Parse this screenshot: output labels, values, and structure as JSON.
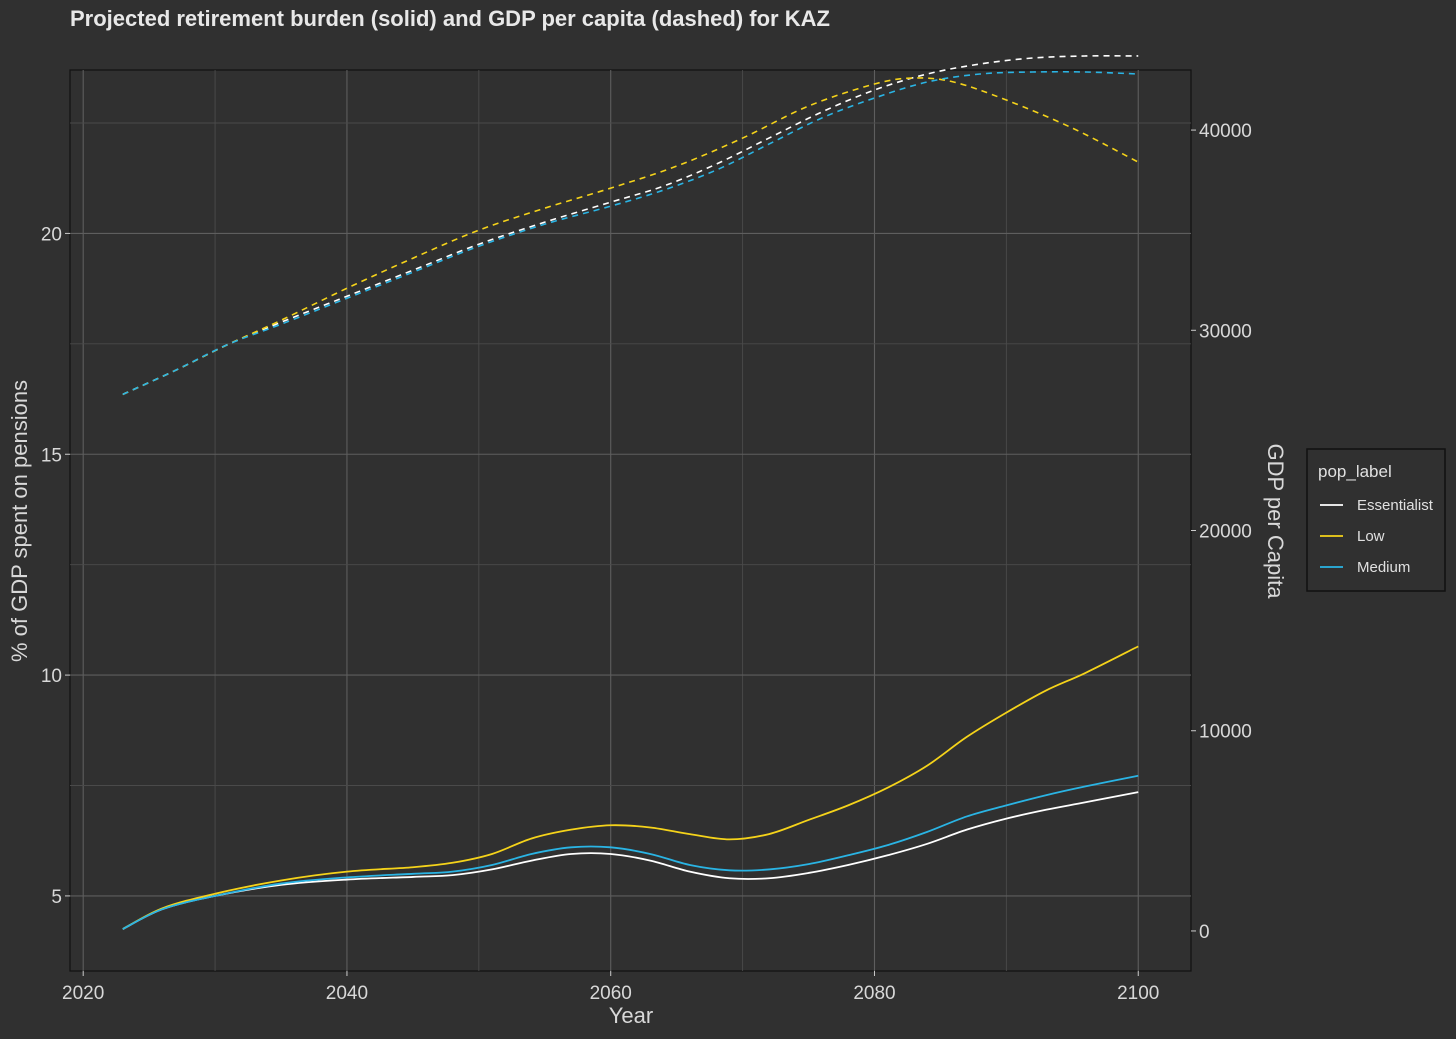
{
  "chart_data": {
    "type": "line",
    "title": "Projected retirement burden (solid) and GDP per capita (dashed) for KAZ",
    "xlabel": "Year",
    "ylabel": "% of GDP spent on pensions",
    "ylabel_right": "GDP per Capita",
    "xlim": [
      2019,
      2104
    ],
    "ylim": [
      3.3,
      23.7
    ],
    "ylim_right": [
      -2000,
      43000
    ],
    "x_ticks": [
      2020,
      2040,
      2060,
      2080,
      2100
    ],
    "y_ticks": [
      5,
      10,
      15,
      20
    ],
    "y_ticks_right": [
      0,
      10000,
      20000,
      30000,
      40000
    ],
    "grid": true,
    "legend": {
      "title": "pop_label",
      "position": "right"
    },
    "series": [
      {
        "name": "Essentialist",
        "color": "#ffffff",
        "pension": {
          "x": [
            2023,
            2026,
            2030,
            2035,
            2040,
            2045,
            2048,
            2051,
            2054,
            2057,
            2060,
            2063,
            2066,
            2069,
            2072,
            2075,
            2078,
            2081,
            2084,
            2087,
            2090,
            2093,
            2096,
            2100
          ],
          "y": [
            4.25,
            4.7,
            5.0,
            5.25,
            5.37,
            5.43,
            5.47,
            5.6,
            5.8,
            5.95,
            5.95,
            5.8,
            5.55,
            5.4,
            5.4,
            5.52,
            5.7,
            5.92,
            6.18,
            6.5,
            6.75,
            6.95,
            7.12,
            7.35
          ]
        },
        "gdp": {
          "x": [
            2023,
            2027,
            2031,
            2035,
            2040,
            2045,
            2050,
            2055,
            2060,
            2064,
            2068,
            2072,
            2076,
            2080,
            2084,
            2088,
            2092,
            2096,
            2100
          ],
          "y": [
            26800,
            28000,
            29300,
            30400,
            31700,
            33000,
            34300,
            35400,
            36400,
            37200,
            38300,
            39600,
            40900,
            42000,
            42800,
            43300,
            43600,
            43700,
            43700
          ]
        }
      },
      {
        "name": "Low",
        "color": "#f5d31a",
        "pension": {
          "x": [
            2023,
            2026,
            2030,
            2035,
            2040,
            2045,
            2048,
            2051,
            2054,
            2057,
            2060,
            2063,
            2066,
            2069,
            2072,
            2075,
            2078,
            2081,
            2084,
            2087,
            2090,
            2093,
            2096,
            2100
          ],
          "y": [
            4.25,
            4.72,
            5.05,
            5.35,
            5.55,
            5.65,
            5.75,
            5.95,
            6.3,
            6.5,
            6.6,
            6.55,
            6.4,
            6.28,
            6.4,
            6.72,
            7.05,
            7.45,
            7.95,
            8.6,
            9.15,
            9.65,
            10.05,
            10.65
          ]
        },
        "gdp": {
          "x": [
            2023,
            2027,
            2031,
            2035,
            2040,
            2045,
            2050,
            2055,
            2060,
            2065,
            2070,
            2075,
            2080,
            2083,
            2086,
            2090,
            2095,
            2100
          ],
          "y": [
            26800,
            28000,
            29300,
            30500,
            32100,
            33600,
            35000,
            36100,
            37100,
            38200,
            39600,
            41200,
            42300,
            42600,
            42400,
            41500,
            40100,
            38400
          ]
        }
      },
      {
        "name": "Medium",
        "color": "#2ab4e4",
        "pension": {
          "x": [
            2023,
            2026,
            2030,
            2035,
            2040,
            2045,
            2048,
            2051,
            2054,
            2057,
            2060,
            2063,
            2066,
            2069,
            2072,
            2075,
            2078,
            2081,
            2084,
            2087,
            2090,
            2093,
            2096,
            2100
          ],
          "y": [
            4.25,
            4.7,
            5.0,
            5.28,
            5.42,
            5.5,
            5.55,
            5.7,
            5.95,
            6.1,
            6.1,
            5.95,
            5.7,
            5.58,
            5.6,
            5.72,
            5.92,
            6.15,
            6.45,
            6.8,
            7.05,
            7.28,
            7.48,
            7.72
          ]
        },
        "gdp": {
          "x": [
            2023,
            2027,
            2031,
            2035,
            2040,
            2045,
            2050,
            2055,
            2060,
            2064,
            2068,
            2072,
            2076,
            2080,
            2084,
            2088,
            2092,
            2096,
            2100
          ],
          "y": [
            26800,
            28000,
            29300,
            30300,
            31600,
            32900,
            34200,
            35300,
            36200,
            37000,
            38000,
            39300,
            40600,
            41600,
            42400,
            42800,
            42900,
            42900,
            42800
          ]
        }
      }
    ]
  }
}
